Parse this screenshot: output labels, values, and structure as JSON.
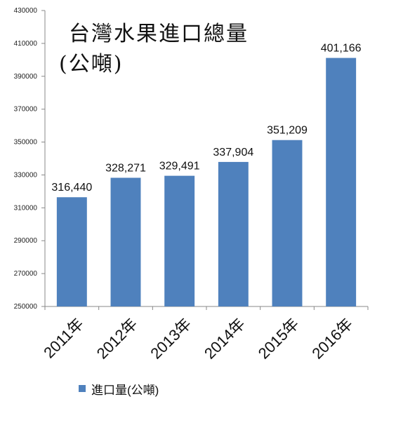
{
  "chart_data": {
    "type": "bar",
    "title": "台灣水果進口總量",
    "subtitle": "(公噸)",
    "categories": [
      "2011年",
      "2012年",
      "2013年",
      "2014年",
      "2015年",
      "2016年"
    ],
    "series": [
      {
        "name": "進口量(公噸)",
        "values": [
          316440,
          328271,
          329491,
          337904,
          351209,
          401166
        ],
        "data_labels": [
          "316,440",
          "328,271",
          "329,491",
          "337,904",
          "351,209",
          "401,166"
        ],
        "color": "#4f81bd"
      }
    ],
    "ylim": [
      250000,
      430000
    ],
    "yticks": [
      "250000",
      "270000",
      "290000",
      "310000",
      "330000",
      "350000",
      "370000",
      "390000",
      "410000",
      "430000"
    ],
    "xlabel": "",
    "ylabel": "",
    "grid": false,
    "legend_position": "bottom-left"
  }
}
